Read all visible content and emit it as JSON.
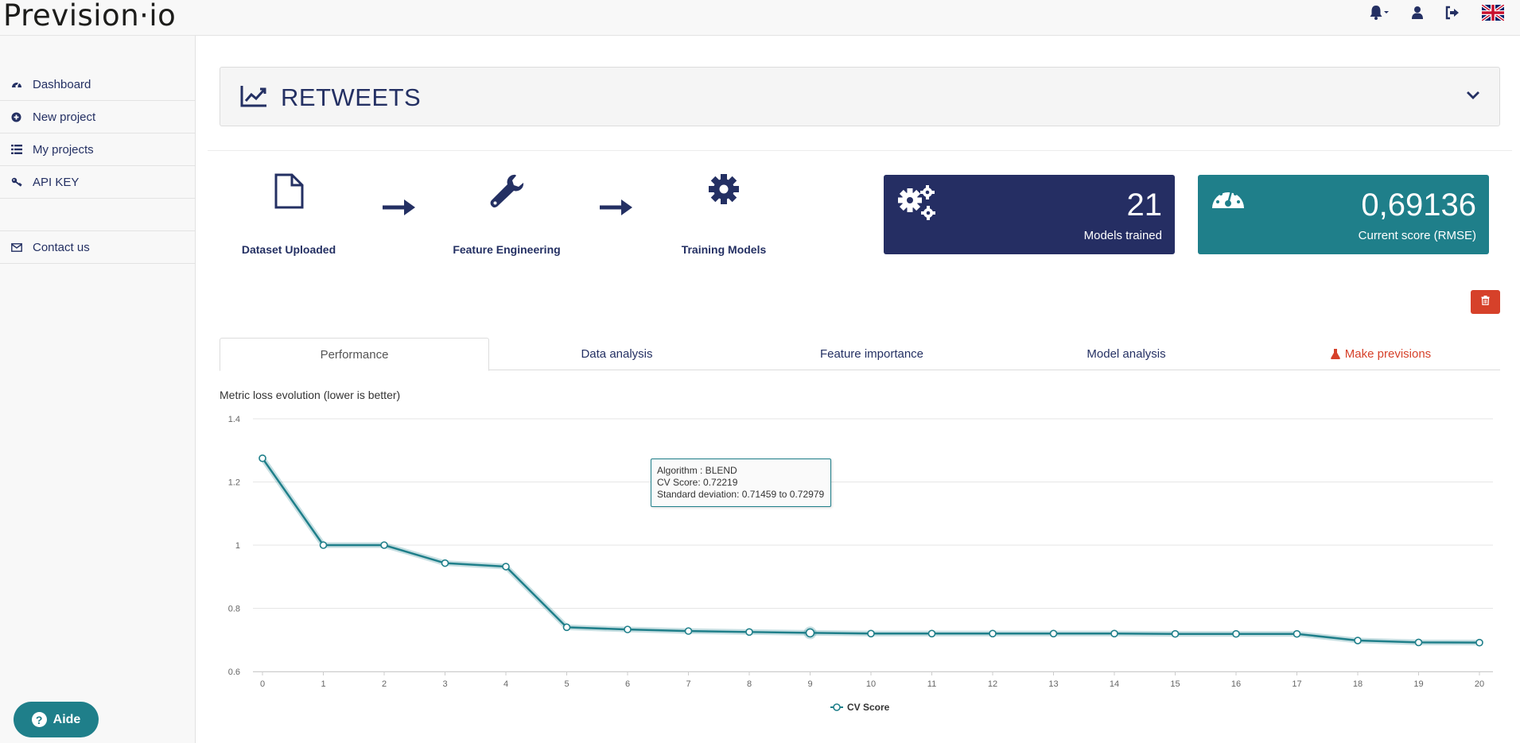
{
  "app": {
    "logo": "Prevision·io"
  },
  "topbar": {
    "icons": [
      "bell-icon",
      "user-icon",
      "logout-icon",
      "uk-flag-icon"
    ]
  },
  "sidebar": {
    "items": [
      {
        "label": "Dashboard",
        "icon": "dashboard-icon"
      },
      {
        "label": "New project",
        "icon": "plus-circle-icon"
      },
      {
        "label": "My projects",
        "icon": "list-icon"
      },
      {
        "label": "API KEY",
        "icon": "key-icon"
      },
      {
        "label": "Contact us",
        "icon": "envelope-icon"
      }
    ],
    "help_label": "Aide"
  },
  "project": {
    "title": "RETWEETS"
  },
  "steps": [
    {
      "label": "Dataset Uploaded",
      "icon": "file-icon"
    },
    {
      "label": "Feature Engineering",
      "icon": "wrench-icon"
    },
    {
      "label": "Training Models",
      "icon": "gear-icon"
    }
  ],
  "kpis": {
    "models": {
      "value": "21",
      "label": "Models trained",
      "color": "#252e63"
    },
    "score": {
      "value": "0,69136",
      "label": "Current score (RMSE)",
      "color": "#1f7f8a"
    }
  },
  "tabs": [
    {
      "label": "Performance",
      "active": true
    },
    {
      "label": "Data analysis"
    },
    {
      "label": "Feature importance"
    },
    {
      "label": "Model analysis"
    },
    {
      "label": "Make previsions",
      "icon": "flask-icon",
      "color": "#d6412a"
    }
  ],
  "chart_data": {
    "type": "line",
    "title": "Metric loss evolution (lower is better)",
    "x": [
      0,
      1,
      2,
      3,
      4,
      5,
      6,
      7,
      8,
      9,
      10,
      11,
      12,
      13,
      14,
      15,
      16,
      17,
      18,
      19,
      20
    ],
    "series": [
      {
        "name": "CV Score",
        "color": "#1f7f8a",
        "values": [
          1.275,
          1.0,
          1.0,
          0.943,
          0.932,
          0.74,
          0.733,
          0.728,
          0.725,
          0.72219,
          0.72,
          0.72,
          0.72,
          0.72,
          0.72,
          0.719,
          0.719,
          0.719,
          0.698,
          0.692,
          0.69136
        ]
      }
    ],
    "ylim": [
      0.6,
      1.4
    ],
    "yticks": [
      "0.6",
      "0.8",
      "1",
      "1.2",
      "1.4"
    ],
    "xticks": [
      "0",
      "1",
      "2",
      "3",
      "4",
      "5",
      "6",
      "7",
      "8",
      "9",
      "10",
      "11",
      "12",
      "13",
      "14",
      "15",
      "16",
      "17",
      "18",
      "19",
      "20"
    ],
    "legend": "CV Score",
    "legend_position": "bottom-center",
    "highlight_index": 9,
    "tooltip": {
      "line1": "Algorithm : BLEND",
      "line2": "CV Score: 0.72219",
      "line3": "Standard deviation: 0.71459 to 0.72979"
    }
  }
}
